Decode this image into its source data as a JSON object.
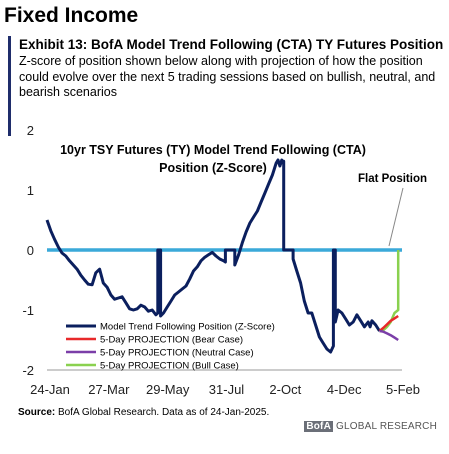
{
  "header": {
    "section": "Fixed Income",
    "exhibit_title": "Exhibit 13: BofA Model Trend Following (CTA) TY Futures Position",
    "exhibit_subtitle": "Z-score of position shown below along with projection of how the position could evolve over the next 5 trading sessions based on bullish, neutral, and bearish scenarios"
  },
  "footer": {
    "source_label": "Source:",
    "source_text": " BofA Global Research. Data as of 24-Jan-2025.",
    "logo_badge": "BofA",
    "logo_text": " GLOBAL RESEARCH"
  },
  "chart_data": {
    "type": "line",
    "title": "10yr TSY Futures (TY) Model Trend Following (CTA) Position (Z-Score)",
    "title_lines": [
      "10yr TSY Futures (TY) Model Trend Following (CTA)",
      "Position (Z-Score)"
    ],
    "xlabel": "",
    "ylabel": "",
    "x_ticks": [
      "24-Jan",
      "27-Mar",
      "29-May",
      "31-Jul",
      "2-Oct",
      "4-Dec",
      "5-Feb"
    ],
    "x_range": [
      0,
      378
    ],
    "y_ticks": [
      2,
      1,
      0,
      -1,
      -2
    ],
    "ylim": [
      -2,
      2
    ],
    "grid": false,
    "legend_position": "bottom-left",
    "annotation": "Flat Position",
    "colors": {
      "main": "#0b1f5e",
      "flat": "#3aa9d9",
      "bear": "#e8292a",
      "neutral": "#7b3ea8",
      "bull": "#8ad14f"
    },
    "series": [
      {
        "name": "Model Trend Following Position (Z-Score)",
        "x": [
          0,
          4,
          8,
          12,
          16,
          20,
          24,
          28,
          32,
          36,
          40,
          44,
          48,
          52,
          56,
          60,
          64,
          68,
          72,
          76,
          80,
          84,
          88,
          92,
          96,
          100,
          104,
          108,
          112,
          116,
          118,
          118,
          121,
          121,
          124,
          128,
          132,
          136,
          140,
          144,
          148,
          152,
          156,
          160,
          164,
          168,
          172,
          176,
          180,
          184,
          188,
          190,
          190,
          194,
          198,
          200,
          200,
          204,
          208,
          212,
          216,
          220,
          224,
          228,
          232,
          236,
          240,
          242,
          244,
          246,
          248,
          250,
          251,
          252,
          252,
          256,
          260,
          262,
          262,
          266,
          270,
          274,
          278,
          282,
          286,
          290,
          294,
          298,
          302,
          305,
          305,
          307,
          307,
          310,
          314,
          318,
          322,
          326,
          330,
          334,
          338,
          342,
          344,
          346,
          350,
          354
        ],
        "values": [
          0.5,
          0.32,
          0.18,
          0.05,
          -0.05,
          -0.1,
          -0.18,
          -0.25,
          -0.32,
          -0.42,
          -0.5,
          -0.57,
          -0.58,
          -0.38,
          -0.32,
          -0.55,
          -0.62,
          -0.75,
          -0.82,
          -0.8,
          -0.78,
          -0.88,
          -0.98,
          -1.0,
          -0.98,
          -0.92,
          -0.95,
          -1.02,
          -1.0,
          -1.08,
          -1.05,
          0,
          0,
          -1.1,
          -1.05,
          -0.95,
          -0.85,
          -0.75,
          -0.7,
          -0.65,
          -0.6,
          -0.48,
          -0.35,
          -0.28,
          -0.18,
          -0.12,
          -0.08,
          -0.04,
          -0.1,
          -0.15,
          -0.18,
          -0.2,
          0,
          0,
          0,
          0,
          -0.25,
          -0.08,
          0.12,
          0.3,
          0.45,
          0.55,
          0.65,
          0.8,
          0.95,
          1.1,
          1.25,
          1.35,
          1.45,
          1.5,
          1.4,
          1.5,
          1.45,
          1.48,
          0,
          0,
          0,
          0,
          -0.15,
          -0.35,
          -0.55,
          -0.85,
          -1.05,
          -1.05,
          -1.25,
          -1.45,
          -1.55,
          -1.65,
          -1.7,
          -1.6,
          0,
          0,
          -1.2,
          -1.0,
          -1.05,
          -1.15,
          -1.25,
          -1.2,
          -1.08,
          -1.18,
          -1.28,
          -1.2,
          -1.28,
          -1.18,
          -1.25,
          -1.35
        ]
      },
      {
        "name": "5-Day PROJECTION (Bear Case)",
        "x": [
          354,
          358,
          362,
          366,
          370,
          374
        ],
        "values": [
          -1.35,
          -1.3,
          -1.24,
          -1.18,
          -1.14,
          -1.1
        ]
      },
      {
        "name": "5-Day PROJECTION (Neutral Case)",
        "x": [
          354,
          358,
          362,
          366,
          370,
          374
        ],
        "values": [
          -1.35,
          -1.36,
          -1.39,
          -1.42,
          -1.46,
          -1.5
        ]
      },
      {
        "name": "5-Day PROJECTION (Bull Case)",
        "x": [
          354,
          358,
          362,
          366,
          370,
          374,
          374
        ],
        "values": [
          -1.35,
          -1.34,
          -1.28,
          -1.2,
          -1.05,
          -1.0,
          0
        ]
      }
    ]
  }
}
